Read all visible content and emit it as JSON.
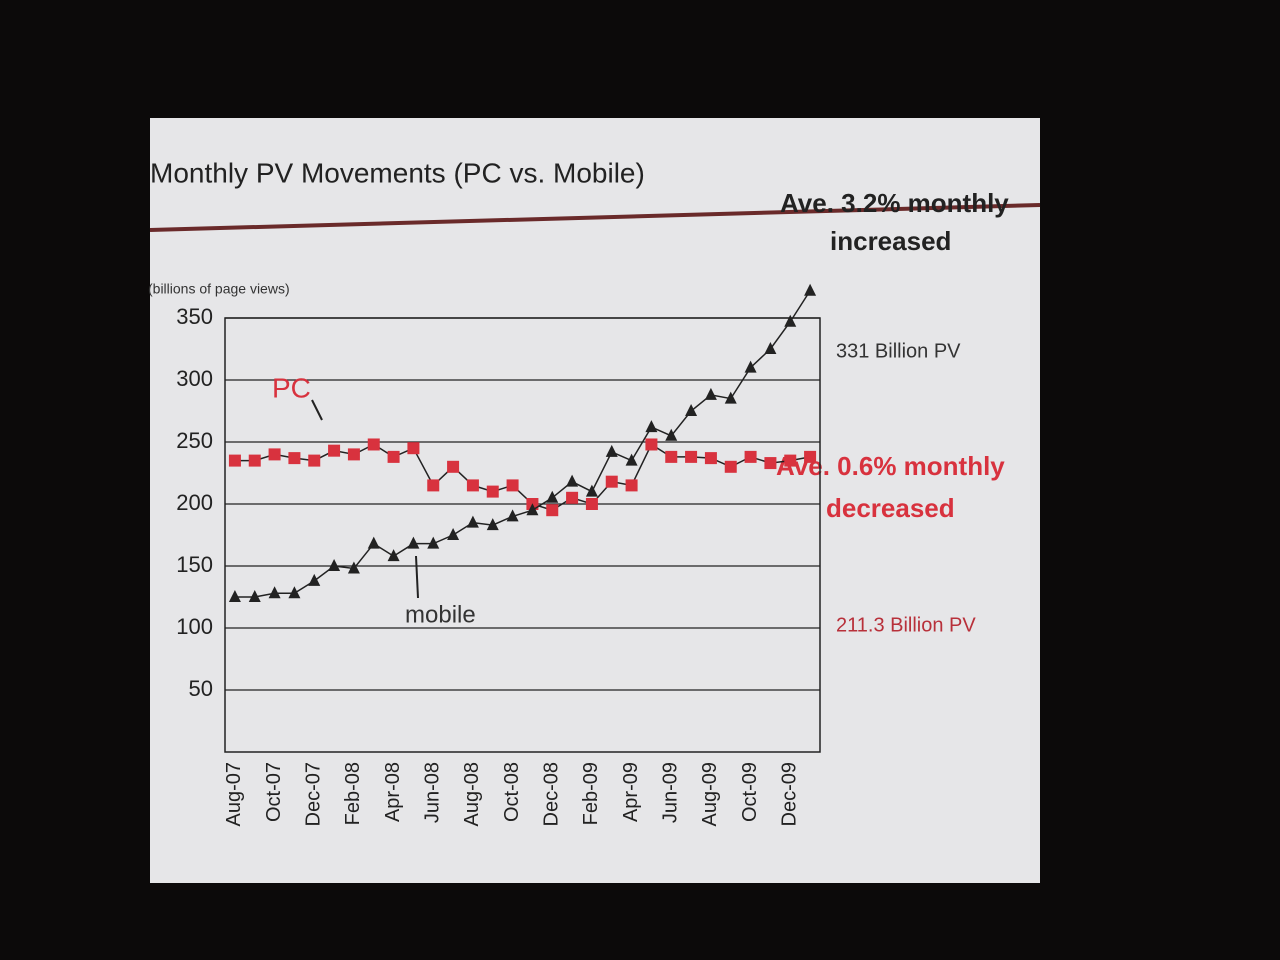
{
  "chart_data": {
    "type": "line",
    "title": "Monthly PV Movements (PC vs. Mobile)",
    "y_label": "(billions of page views)",
    "categories": [
      "Aug-07",
      null,
      "Oct-07",
      null,
      "Dec-07",
      null,
      "Feb-08",
      null,
      "Apr-08",
      null,
      "Jun-08",
      null,
      "Aug-08",
      null,
      "Oct-08",
      null,
      "Dec-08",
      null,
      "Feb-09",
      null,
      "Apr-09",
      null,
      "Jun-09",
      null,
      "Aug-09",
      null,
      "Oct-09",
      null,
      "Dec-09",
      null
    ],
    "series": [
      {
        "name": "PC",
        "color": "#d8323e",
        "marker": "square",
        "values": [
          235,
          235,
          240,
          237,
          235,
          243,
          240,
          248,
          238,
          245,
          215,
          230,
          215,
          210,
          215,
          200,
          195,
          205,
          200,
          218,
          215,
          248,
          238,
          238,
          237,
          230,
          238,
          233,
          235,
          238
        ]
      },
      {
        "name": "mobile",
        "color": "#222222",
        "marker": "triangle",
        "values": [
          125,
          125,
          128,
          128,
          138,
          150,
          148,
          168,
          158,
          168,
          168,
          175,
          185,
          183,
          190,
          195,
          205,
          218,
          210,
          242,
          235,
          262,
          255,
          275,
          288,
          285,
          310,
          325,
          347,
          372
        ]
      }
    ],
    "ylim": [
      0,
      350
    ],
    "yticks": [
      50,
      100,
      150,
      200,
      250,
      300,
      350
    ],
    "grid": true,
    "annotations": {
      "mobile_growth": [
        "Ave. 3.2% monthly",
        "increased"
      ],
      "mobile_total": "331 Billion PV",
      "pc_change": [
        "Ave. 0.6% monthly",
        "decreased"
      ],
      "pc_total": "211.3 Billion PV"
    }
  }
}
